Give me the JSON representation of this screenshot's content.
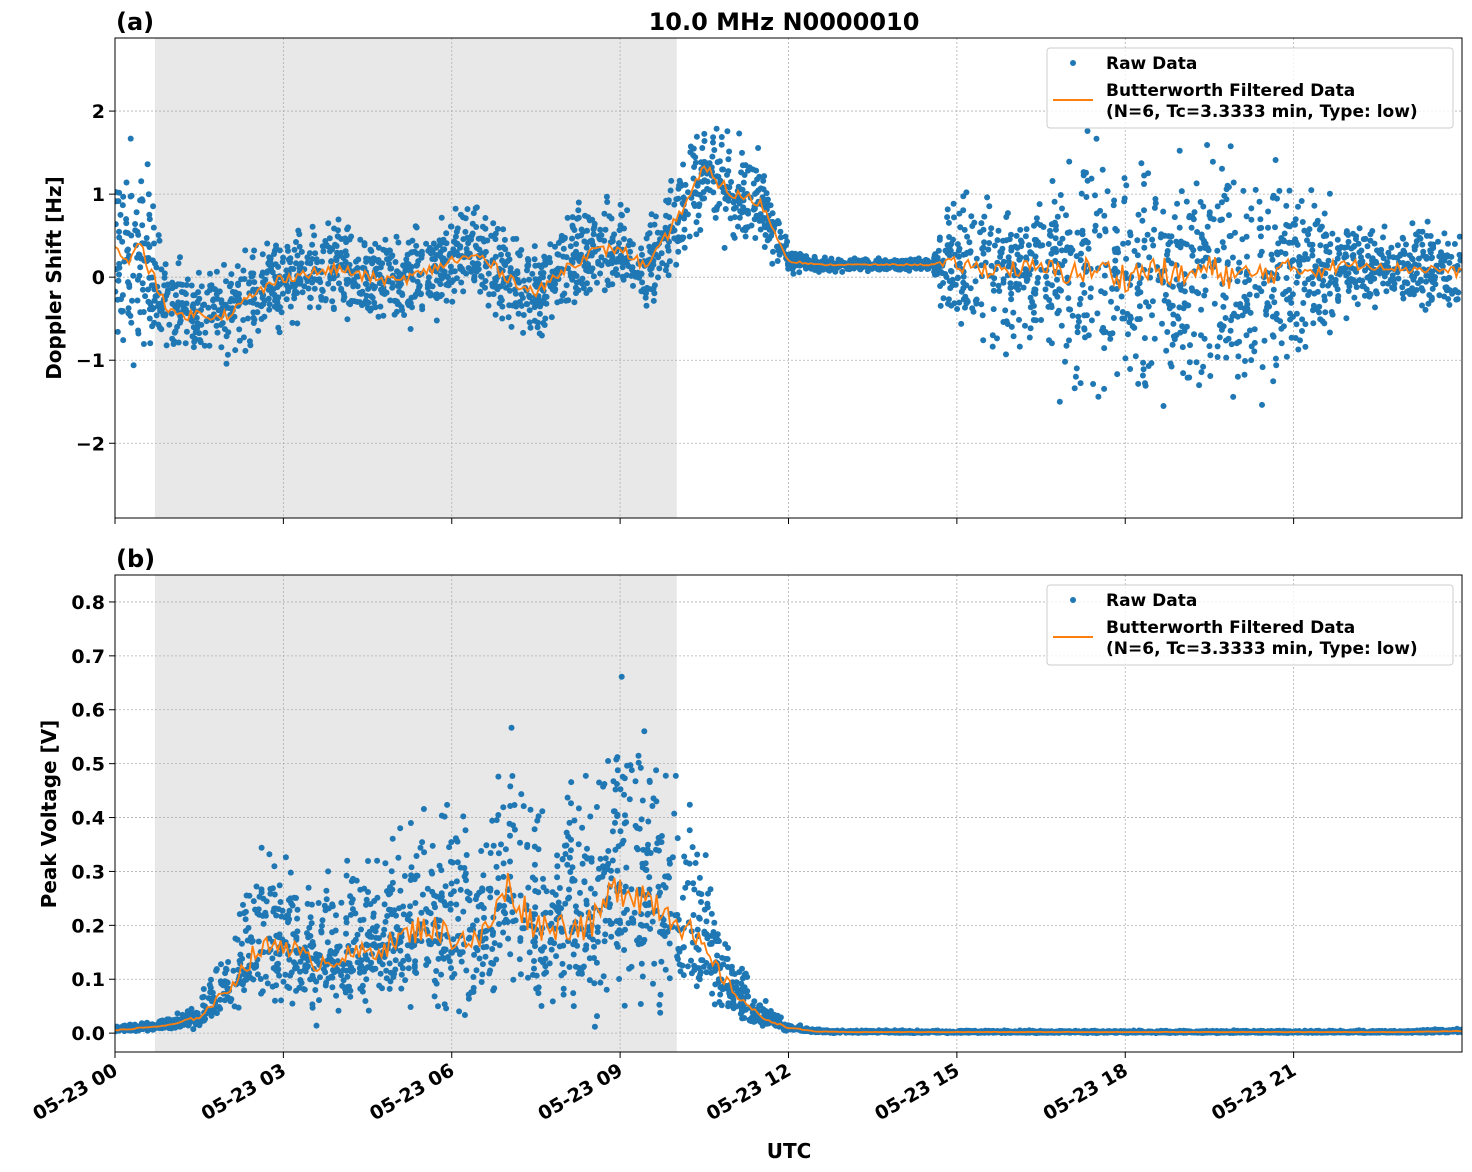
{
  "chart_data": [
    {
      "type": "scatter",
      "panel_label": "(a)",
      "title": "10.0 MHz N0000010",
      "xlabel": "",
      "ylabel": "Doppler Shift [Hz]",
      "xlim_hours_utc": [
        0,
        24
      ],
      "ylim": [
        -2.9,
        2.88
      ],
      "yticks": [
        -2,
        -1,
        0,
        1,
        2
      ],
      "ytick_labels": [
        "−2",
        "−1",
        "0",
        "1",
        "2"
      ],
      "grid": true,
      "legend_placement": "top-right",
      "shaded_interval_hours": [
        0.71,
        10.01
      ],
      "series": [
        {
          "name": "Raw Data",
          "style": "points",
          "color": "#1f77b4"
        },
        {
          "name": "Butterworth Filtered Data\n(N=6, Tc=3.3333 min, Type: low)",
          "style": "line",
          "color": "#ff7f0e"
        }
      ],
      "x_hours": [
        0,
        0.5,
        1,
        1.5,
        2,
        2.5,
        3,
        3.5,
        4,
        4.5,
        5,
        5.5,
        6,
        6.5,
        7,
        7.5,
        8,
        8.5,
        9,
        9.5,
        10,
        10.5,
        11,
        11.5,
        12,
        12.5,
        13,
        13.5,
        14,
        14.5,
        15,
        15.5,
        16,
        16.5,
        17,
        17.5,
        18,
        18.5,
        19,
        19.5,
        20,
        20.5,
        21,
        21.5,
        22,
        22.5,
        23,
        23.5,
        24
      ],
      "filtered_values": [
        0.25,
        0.3,
        -0.45,
        -0.45,
        -0.45,
        -0.2,
        0.0,
        0.05,
        0.1,
        0.0,
        -0.05,
        0.05,
        0.2,
        0.25,
        0.0,
        -0.2,
        0.1,
        0.3,
        0.35,
        0.1,
        0.7,
        1.3,
        1.0,
        0.9,
        0.2,
        0.15,
        0.15,
        0.15,
        0.15,
        0.15,
        0.15,
        0.1,
        0.1,
        0.1,
        0.05,
        0.1,
        0.0,
        0.1,
        0.0,
        0.1,
        0.0,
        0.05,
        0.1,
        0.1,
        0.15,
        0.15,
        0.1,
        0.1,
        0.05
      ],
      "raw_data_spread": [
        0.8,
        0.8,
        0.4,
        0.4,
        0.4,
        0.4,
        0.4,
        0.4,
        0.4,
        0.4,
        0.4,
        0.4,
        0.4,
        0.4,
        0.4,
        0.4,
        0.4,
        0.4,
        0.4,
        0.4,
        0.4,
        0.45,
        0.45,
        0.4,
        0.1,
        0.05,
        0.05,
        0.05,
        0.05,
        0.05,
        0.6,
        0.6,
        0.6,
        0.7,
        0.9,
        1.0,
        1.0,
        1.0,
        1.0,
        1.0,
        1.0,
        0.9,
        0.7,
        0.6,
        0.4,
        0.35,
        0.35,
        0.35,
        0.35
      ]
    },
    {
      "type": "scatter",
      "panel_label": "(b)",
      "title": "",
      "xlabel": "UTC",
      "ylabel": "Peak Voltage [V]",
      "xlim_hours_utc": [
        0,
        24
      ],
      "ylim": [
        -0.035,
        0.85
      ],
      "yticks": [
        0.0,
        0.1,
        0.2,
        0.3,
        0.4,
        0.5,
        0.6,
        0.7,
        0.8
      ],
      "ytick_labels": [
        "0.0",
        "0.1",
        "0.2",
        "0.3",
        "0.4",
        "0.5",
        "0.6",
        "0.7",
        "0.8"
      ],
      "xticks_hours": [
        0,
        3,
        6,
        9,
        12,
        15,
        18,
        21
      ],
      "xtick_labels": [
        "05-23 00",
        "05-23 03",
        "05-23 06",
        "05-23 09",
        "05-23 12",
        "05-23 15",
        "05-23 18",
        "05-23 21"
      ],
      "grid": true,
      "legend_placement": "top-right",
      "shaded_interval_hours": [
        0.71,
        10.01
      ],
      "series": [
        {
          "name": "Raw Data",
          "style": "points",
          "color": "#1f77b4"
        },
        {
          "name": "Butterworth Filtered Data\n(N=6, Tc=3.3333 min, Type: low)",
          "style": "line",
          "color": "#ff7f0e"
        }
      ],
      "x_hours": [
        0,
        0.5,
        1,
        1.5,
        2,
        2.5,
        3,
        3.5,
        4,
        4.5,
        5,
        5.5,
        6,
        6.5,
        7,
        7.5,
        8,
        8.5,
        9,
        9.5,
        10,
        10.5,
        11,
        11.5,
        12,
        12.5,
        13,
        13.5,
        14,
        14.5,
        15,
        15.5,
        16,
        16.5,
        17,
        17.5,
        18,
        18.5,
        19,
        19.5,
        20,
        20.5,
        21,
        21.5,
        22,
        22.5,
        23,
        23.5,
        24
      ],
      "filtered_values": [
        0.005,
        0.01,
        0.015,
        0.03,
        0.08,
        0.15,
        0.17,
        0.13,
        0.14,
        0.15,
        0.17,
        0.2,
        0.18,
        0.17,
        0.27,
        0.2,
        0.2,
        0.2,
        0.28,
        0.25,
        0.22,
        0.15,
        0.08,
        0.03,
        0.01,
        0.003,
        0.002,
        0.002,
        0.002,
        0.002,
        0.002,
        0.002,
        0.002,
        0.002,
        0.002,
        0.002,
        0.002,
        0.002,
        0.002,
        0.002,
        0.002,
        0.002,
        0.002,
        0.002,
        0.002,
        0.002,
        0.002,
        0.003,
        0.004
      ],
      "raw_data_spread": [
        0.005,
        0.006,
        0.01,
        0.02,
        0.06,
        0.12,
        0.13,
        0.1,
        0.11,
        0.12,
        0.13,
        0.16,
        0.15,
        0.14,
        0.22,
        0.17,
        0.16,
        0.17,
        0.25,
        0.22,
        0.2,
        0.12,
        0.06,
        0.02,
        0.006,
        0.003,
        0.002,
        0.002,
        0.002,
        0.002,
        0.002,
        0.002,
        0.002,
        0.002,
        0.002,
        0.002,
        0.002,
        0.002,
        0.002,
        0.002,
        0.002,
        0.002,
        0.002,
        0.002,
        0.002,
        0.002,
        0.002,
        0.003,
        0.004
      ]
    }
  ]
}
